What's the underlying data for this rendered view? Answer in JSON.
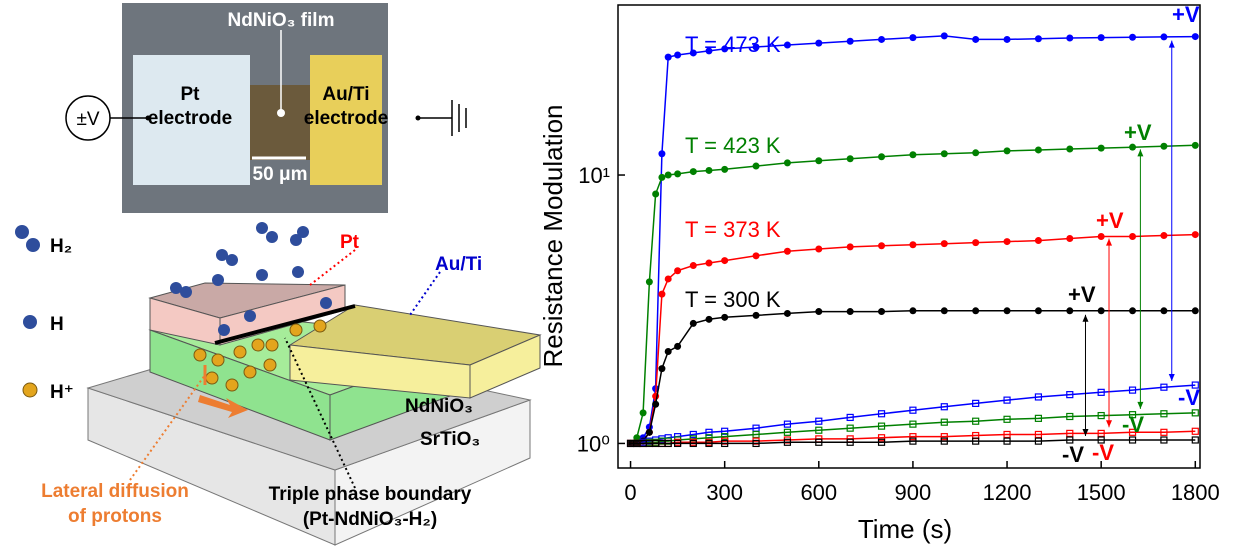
{
  "diagram": {
    "film": "NdNiO₃ film",
    "pt_electrode": [
      "Pt",
      "electrode"
    ],
    "au_electrode": [
      "Au/Ti",
      "electrode"
    ],
    "voltage": "±V",
    "scale": "50 μm",
    "h2": "H₂",
    "h": "H",
    "hplus": "H⁺",
    "pt": "Pt",
    "au": "Au/Ti",
    "ndnio3": "NdNiO₃",
    "srtio3": "SrTiO₃",
    "lateral": [
      "Lateral diffusion",
      "of protons"
    ],
    "triple": [
      "Triple phase boundary",
      "(Pt-NdNiO₃-H₂)"
    ]
  },
  "chart_data": {
    "type": "line",
    "x_label": "Time (s)",
    "y_label": "Resistance Modulation",
    "log_y": true,
    "grid": false,
    "xlim": [
      -40,
      1815
    ],
    "ylim": [
      0.81,
      43
    ],
    "xticks": [
      0,
      300,
      600,
      900,
      1200,
      1500,
      1800
    ],
    "yticks": [
      {
        "value": 1,
        "label": "10⁰"
      },
      {
        "value": 10,
        "label": "10¹"
      }
    ],
    "x": [
      0,
      20,
      40,
      60,
      80,
      100,
      120,
      150,
      200,
      250,
      300,
      400,
      500,
      600,
      700,
      800,
      900,
      1000,
      1100,
      1200,
      1300,
      1400,
      1500,
      1600,
      1700,
      1800
    ],
    "series": [
      {
        "name": "T = 473 K",
        "color": "#0000ff",
        "marker": "filled-circle",
        "values": [
          1.0,
          1.02,
          1.05,
          1.15,
          1.6,
          12,
          27.5,
          28,
          28.5,
          29,
          29.5,
          30,
          30.5,
          31,
          31.5,
          32,
          32.5,
          33,
          32,
          32,
          32.2,
          32.4,
          32.5,
          32.6,
          32.7,
          32.8
        ]
      },
      {
        "name": "T = 423 K",
        "color": "#008000",
        "marker": "filled-circle",
        "values": [
          1.0,
          1.05,
          1.3,
          4,
          8.5,
          9.8,
          10,
          10.1,
          10.3,
          10.4,
          10.5,
          10.8,
          11.1,
          11.3,
          11.5,
          11.7,
          11.9,
          12,
          12.1,
          12.3,
          12.4,
          12.5,
          12.6,
          12.7,
          12.8,
          12.9
        ]
      },
      {
        "name": "T = 373 K",
        "color": "#ff0000",
        "marker": "filled-circle",
        "values": [
          1.0,
          1.0,
          1.02,
          1.1,
          1.5,
          3.6,
          4.1,
          4.4,
          4.6,
          4.7,
          4.8,
          5.0,
          5.2,
          5.3,
          5.4,
          5.45,
          5.5,
          5.55,
          5.6,
          5.65,
          5.7,
          5.8,
          5.9,
          5.9,
          5.95,
          6.0
        ]
      },
      {
        "name": "T = 300 K",
        "color": "#000000",
        "marker": "filled-circle",
        "values": [
          1.0,
          1.0,
          1.02,
          1.1,
          1.4,
          1.9,
          2.2,
          2.3,
          2.8,
          2.9,
          2.95,
          3.0,
          3.05,
          3.1,
          3.1,
          3.1,
          3.12,
          3.12,
          3.12,
          3.12,
          3.12,
          3.12,
          3.12,
          3.12,
          3.12,
          3.12
        ]
      },
      {
        "color": "#0000ff",
        "marker": "open-square",
        "values": [
          1.0,
          1.0,
          1.01,
          1.02,
          1.03,
          1.04,
          1.05,
          1.06,
          1.08,
          1.1,
          1.11,
          1.14,
          1.18,
          1.21,
          1.25,
          1.29,
          1.33,
          1.37,
          1.41,
          1.45,
          1.49,
          1.52,
          1.55,
          1.58,
          1.62,
          1.65
        ]
      },
      {
        "color": "#008000",
        "marker": "open-square",
        "values": [
          1.0,
          1.0,
          1.0,
          1.01,
          1.01,
          1.02,
          1.02,
          1.03,
          1.04,
          1.05,
          1.06,
          1.08,
          1.1,
          1.12,
          1.14,
          1.16,
          1.18,
          1.2,
          1.21,
          1.23,
          1.24,
          1.26,
          1.27,
          1.28,
          1.29,
          1.3
        ]
      },
      {
        "color": "#ff0000",
        "marker": "open-square",
        "values": [
          1.0,
          1.0,
          1.0,
          1.0,
          1.0,
          1.0,
          1.0,
          1.01,
          1.01,
          1.01,
          1.02,
          1.02,
          1.03,
          1.04,
          1.04,
          1.05,
          1.06,
          1.06,
          1.07,
          1.08,
          1.08,
          1.09,
          1.09,
          1.1,
          1.1,
          1.11
        ]
      },
      {
        "color": "#000000",
        "marker": "open-square",
        "values": [
          1.0,
          1.0,
          1.0,
          1.0,
          1.0,
          1.0,
          1.0,
          1.0,
          1.0,
          1.0,
          1.0,
          1.0,
          1.01,
          1.01,
          1.01,
          1.01,
          1.02,
          1.02,
          1.02,
          1.02,
          1.02,
          1.03,
          1.03,
          1.03,
          1.03,
          1.03
        ]
      }
    ],
    "annotations": [
      {
        "text": "+V",
        "color": "#0000ff"
      },
      {
        "text": "-V",
        "color": "#0000ff"
      },
      {
        "text": "+V",
        "color": "#008000"
      },
      {
        "text": "-V",
        "color": "#008000"
      },
      {
        "text": "+V",
        "color": "#ff0000"
      },
      {
        "text": "-V",
        "color": "#ff0000"
      },
      {
        "text": "+V",
        "color": "#000000"
      },
      {
        "text": "-V",
        "color": "#000000"
      }
    ]
  }
}
